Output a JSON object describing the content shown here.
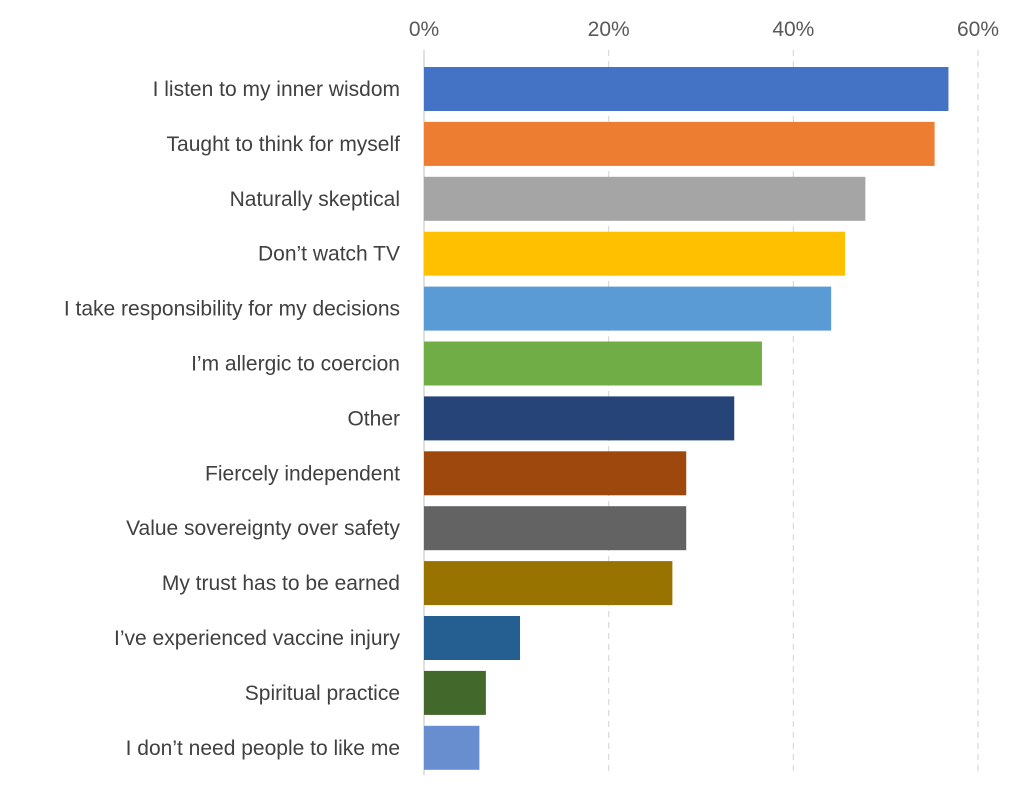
{
  "chart_data": {
    "type": "bar",
    "orientation": "horizontal",
    "title": "",
    "xlabel": "",
    "ylabel": "",
    "xlim": [
      0,
      60
    ],
    "x_ticks": [
      "0%",
      "20%",
      "40%",
      "60%"
    ],
    "x_tick_values": [
      0,
      20,
      40,
      60
    ],
    "x_axis_position": "top",
    "grid": true,
    "legend": "none",
    "categories": [
      "I listen to my inner wisdom",
      "Taught to think for myself",
      "Naturally skeptical",
      "Don’t watch TV",
      "I take responsibility for my decisions",
      "I’m allergic to coercion",
      "Other",
      "Fiercely independent",
      "Value sovereignty over safety",
      "My trust has to be earned",
      "I’ve experienced vaccine injury",
      "Spiritual practice",
      "I don’t need people to like me"
    ],
    "values": [
      56.8,
      55.3,
      47.8,
      45.6,
      44.1,
      36.6,
      33.6,
      28.4,
      28.4,
      26.9,
      10.4,
      6.7,
      6.0
    ],
    "colors": [
      "#4472C4",
      "#ED7D31",
      "#A5A5A5",
      "#FFC000",
      "#5B9BD5",
      "#70AD47",
      "#264478",
      "#9E480E",
      "#636363",
      "#997300",
      "#255E91",
      "#43682B",
      "#698ED0"
    ]
  }
}
